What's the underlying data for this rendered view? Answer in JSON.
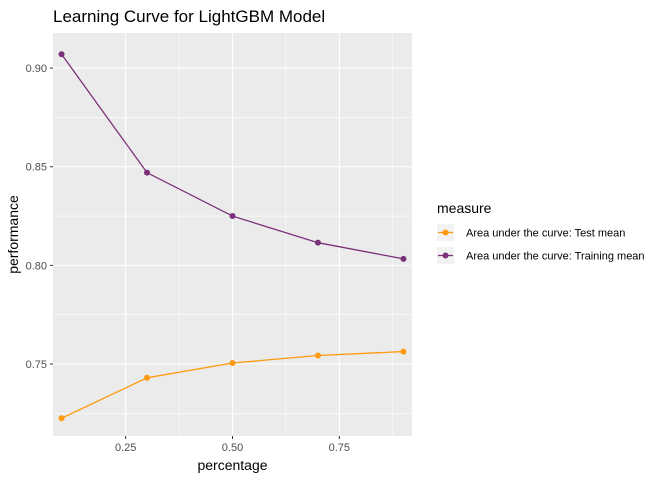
{
  "chart_data": {
    "type": "line",
    "title": "Learning Curve for LightGBM Model",
    "xlabel": "percentage",
    "ylabel": "performance",
    "xlim": [
      0.08,
      0.92
    ],
    "ylim": [
      0.7135,
      0.9178
    ],
    "x_ticks": [
      {
        "value": 0.25,
        "label": "0.25"
      },
      {
        "value": 0.5,
        "label": "0.50"
      },
      {
        "value": 0.75,
        "label": "0.75"
      }
    ],
    "x_minor_ticks": [
      0.375,
      0.625,
      0.875
    ],
    "y_ticks": [
      {
        "value": 0.75,
        "label": "0.75"
      },
      {
        "value": 0.8,
        "label": "0.80"
      },
      {
        "value": 0.85,
        "label": "0.85"
      },
      {
        "value": 0.9,
        "label": "0.90"
      }
    ],
    "y_minor_ticks": [
      0.725,
      0.775,
      0.825,
      0.875
    ],
    "x": [
      0.1,
      0.3,
      0.5,
      0.7,
      0.9
    ],
    "series": [
      {
        "name": "Area under the curve: Test mean",
        "color": "#ff9a0e",
        "values": [
          0.7225,
          0.743,
          0.7505,
          0.7543,
          0.7563
        ]
      },
      {
        "name": "Area under the curve: Training mean",
        "color": "#7b3179",
        "values": [
          0.907,
          0.847,
          0.825,
          0.8115,
          0.8033
        ]
      }
    ],
    "legend": {
      "title": "measure",
      "position": "right"
    },
    "grid": true,
    "panel_color": "#ebebeb",
    "gridline_color": "#ffffff"
  }
}
